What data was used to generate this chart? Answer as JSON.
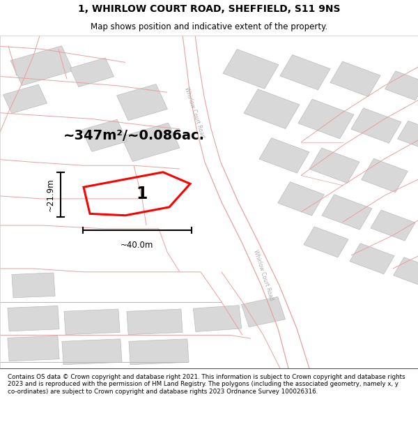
{
  "title": "1, WHIRLOW COURT ROAD, SHEFFIELD, S11 9NS",
  "subtitle": "Map shows position and indicative extent of the property.",
  "footer": "Contains OS data © Crown copyright and database right 2021. This information is subject to Crown copyright and database rights 2023 and is reproduced with the permission of HM Land Registry. The polygons (including the associated geometry, namely x, y co-ordinates) are subject to Crown copyright and database rights 2023 Ordnance Survey 100026316.",
  "area_label": "~347m²/~0.086ac.",
  "plot_number": "1",
  "dim_width": "~40.0m",
  "dim_height": "~21.9m",
  "road_color": "#e8a0a0",
  "building_color": "#d8d8d8",
  "building_edge": "#bbbbbb",
  "road_label_upper": "Whirlow Court Road",
  "road_label_lower": "Whirlow Court Road"
}
